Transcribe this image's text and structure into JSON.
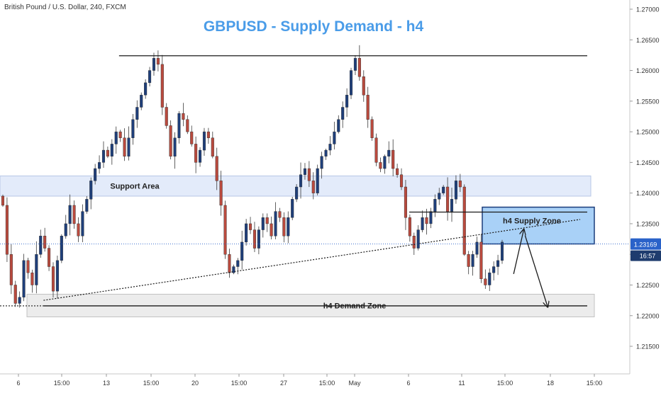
{
  "symbol_header": "British Pound / U.S. Dollar, 240, FXCM",
  "chart_data": {
    "type": "candlestick",
    "title": "GBPUSD - Supply Demand - h4",
    "timeframe": "240",
    "colors": {
      "title": "#4a9ce8",
      "up_candle": "#1f3f7a",
      "down_candle": "#b94a3e",
      "support_zone": "#e3ebfa",
      "supply_zone": "#a9d1f7",
      "demand_zone": "#ececec",
      "price_line": "#2a62c9",
      "price_badge": "#2a62c9",
      "countdown_badge": "#1e3c6e"
    },
    "y_axis": {
      "ylim": [
        1.2105,
        1.2715
      ],
      "ticks": [
        "1.27000",
        "1.26500",
        "1.26000",
        "1.25500",
        "1.25000",
        "1.24500",
        "1.24000",
        "1.23500",
        "1.23000",
        "1.22500",
        "1.22000",
        "1.21500"
      ]
    },
    "x_axis": {
      "ticks": [
        "6",
        "15:00",
        "13",
        "15:00",
        "20",
        "15:00",
        "27",
        "15:00",
        "May",
        "15:00",
        "6",
        "15:00",
        "11",
        "15:00",
        "18",
        "15:00"
      ]
    },
    "current_price": {
      "value": 1.23169,
      "label": "1.23169",
      "countdown": "16:57"
    },
    "zones": [
      {
        "name": "Support Area",
        "low": 1.2395,
        "high": 1.2428
      },
      {
        "name": "h4 Supply Zone",
        "low": 1.2317,
        "high": 1.2377
      },
      {
        "name": "h4 Demand Zone",
        "low": 1.2198,
        "high": 1.2235
      }
    ],
    "levels": [
      {
        "name": "resistance",
        "price": 1.2624,
        "from": "Apr 14",
        "to": "May 18"
      },
      {
        "name": "supply level",
        "price": 1.2369,
        "from": "May 6",
        "to": "May 18"
      },
      {
        "name": "demand level",
        "price": 1.2216,
        "from": "Apr 8",
        "to": "May 18"
      }
    ],
    "trendline": {
      "from": {
        "date": "Apr 8",
        "price": 1.2225
      },
      "to": {
        "date": "May 18",
        "price": 1.2357
      }
    },
    "projection": [
      {
        "date": "May 14",
        "price": 1.2268
      },
      {
        "date": "May 15",
        "price": 1.234
      },
      {
        "date": "May 18",
        "price": 1.2215
      }
    ],
    "ohlc_source": [
      1.238,
      1.23,
      1.225,
      1.222,
      1.223,
      1.229,
      1.227,
      1.225,
      1.23,
      1.233,
      1.231,
      1.228,
      1.224,
      1.229,
      1.233,
      1.235,
      1.238,
      1.235,
      1.233,
      1.237,
      1.239,
      1.242,
      1.244,
      1.245,
      1.247,
      1.246,
      1.248,
      1.25,
      1.249,
      1.246,
      1.249,
      1.252,
      1.254,
      1.256,
      1.258,
      1.26,
      1.262,
      1.261,
      1.254,
      1.251,
      1.246,
      1.249,
      1.253,
      1.252,
      1.25,
      1.248,
      1.245,
      1.247,
      1.25,
      1.249,
      1.246,
      1.242,
      1.238,
      1.23,
      1.227,
      1.228,
      1.229,
      1.232,
      1.235,
      1.234,
      1.231,
      1.234,
      1.236,
      1.235,
      1.233,
      1.237,
      1.236,
      1.233,
      1.236,
      1.239,
      1.241,
      1.243,
      1.244,
      1.242,
      1.24,
      1.244,
      1.246,
      1.247,
      1.248,
      1.25,
      1.252,
      1.254,
      1.256,
      1.26,
      1.262,
      1.259,
      1.256,
      1.252,
      1.249,
      1.245,
      1.244,
      1.246,
      1.247,
      1.244,
      1.243,
      1.241,
      1.236,
      1.233,
      1.231,
      1.234,
      1.236,
      1.235,
      1.237,
      1.239,
      1.24,
      1.241,
      1.237,
      1.239,
      1.242,
      1.241,
      1.23,
      1.228,
      1.23,
      1.232,
      1.226,
      1.225,
      1.227,
      1.228,
      1.229,
      1.232
    ]
  }
}
